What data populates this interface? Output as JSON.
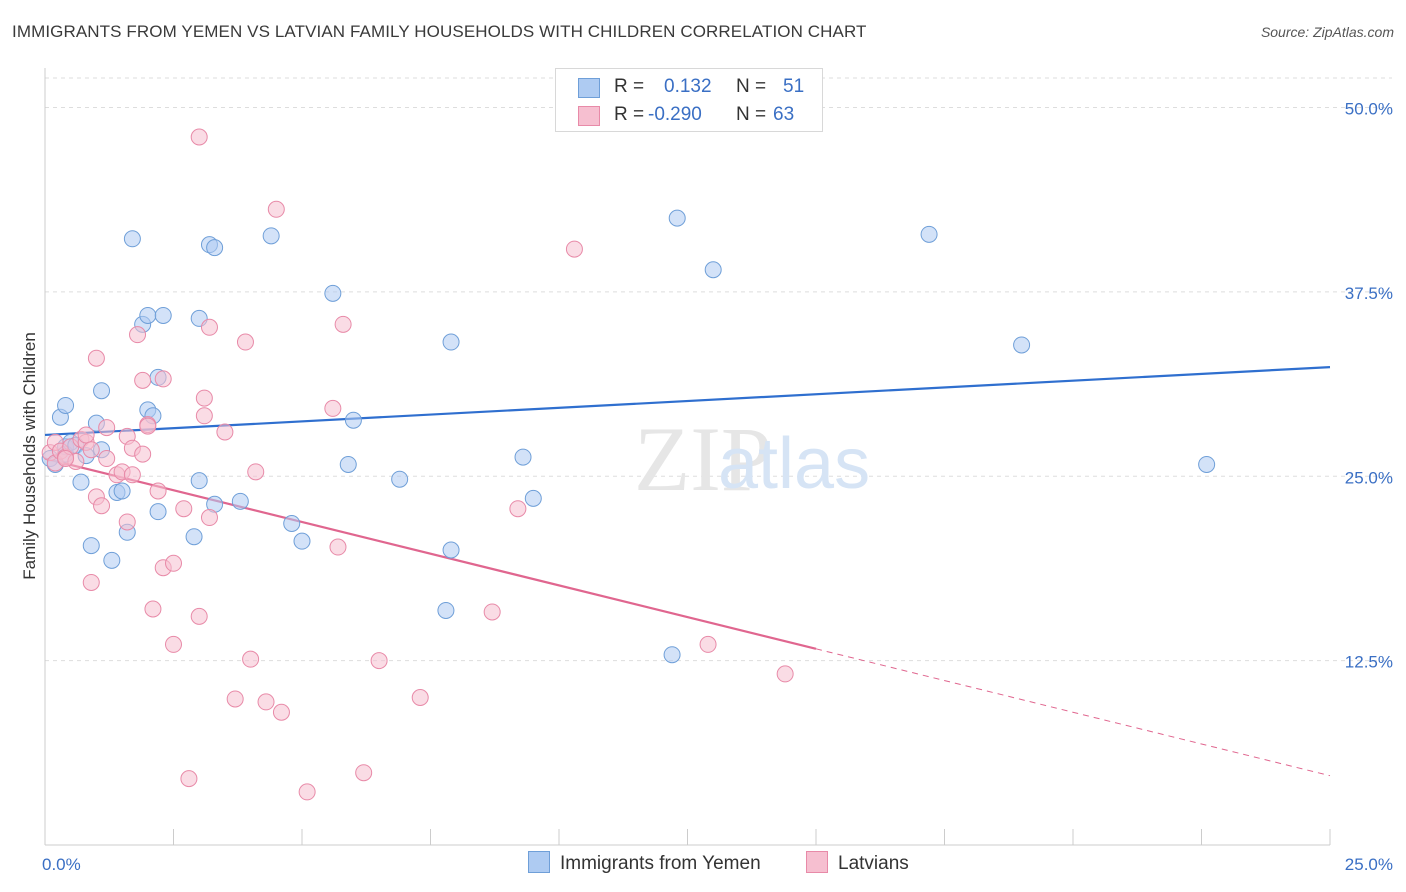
{
  "title": "IMMIGRANTS FROM YEMEN VS LATVIAN FAMILY HOUSEHOLDS WITH CHILDREN CORRELATION CHART",
  "source": "Source: ZipAtlas.com",
  "watermark": {
    "zip": "ZIP",
    "atlas": "atlas"
  },
  "stats": [
    {
      "r_label": "R =",
      "r_value": "0.132",
      "n_label": "N =",
      "n_value": "51"
    },
    {
      "r_label": "R =",
      "r_value": "-0.290",
      "n_label": "N =",
      "n_value": "63"
    }
  ],
  "legend": {
    "yemen": "Immigrants from Yemen",
    "latvians": "Latvians"
  },
  "colors": {
    "yemen_fill": "#aecbf2",
    "yemen_stroke": "#6f9fd8",
    "yemen_line": "#2f6fcf",
    "latvian_fill": "#f6bfd0",
    "latvian_stroke": "#e88aa8",
    "latvian_line": "#e0668f",
    "tick_label": "#3a6fc4",
    "grid": "#dddddd"
  },
  "chart_data": {
    "type": "scatter",
    "title": "IMMIGRANTS FROM YEMEN VS LATVIAN FAMILY HOUSEHOLDS WITH CHILDREN CORRELATION CHART",
    "xlabel": "",
    "ylabel": "Family Households with Children",
    "xlim": [
      0,
      25
    ],
    "ylim": [
      0,
      52
    ],
    "x_tick_labels": [
      "0.0%",
      "25.0%"
    ],
    "y_ticks": [
      12.5,
      25.0,
      37.5,
      50.0
    ],
    "y_tick_labels": [
      "12.5%",
      "25.0%",
      "37.5%",
      "50.0%"
    ],
    "grid": true,
    "legend_position": "bottom-center",
    "series": [
      {
        "name": "Immigrants from Yemen",
        "trend": {
          "x": [
            0,
            25
          ],
          "y": [
            27.8,
            32.4
          ]
        },
        "points": [
          [
            0.1,
            26.2
          ],
          [
            0.2,
            25.8
          ],
          [
            0.3,
            29.0
          ],
          [
            0.4,
            27.0
          ],
          [
            0.4,
            26.5
          ],
          [
            0.4,
            29.8
          ],
          [
            0.5,
            27.3
          ],
          [
            0.6,
            27.1
          ],
          [
            0.7,
            24.6
          ],
          [
            0.8,
            26.4
          ],
          [
            0.9,
            20.3
          ],
          [
            1.0,
            28.6
          ],
          [
            1.1,
            26.8
          ],
          [
            1.1,
            30.8
          ],
          [
            1.3,
            19.3
          ],
          [
            1.4,
            23.9
          ],
          [
            1.5,
            24.0
          ],
          [
            1.6,
            21.2
          ],
          [
            1.7,
            41.1
          ],
          [
            1.9,
            35.3
          ],
          [
            2.0,
            29.5
          ],
          [
            2.0,
            35.9
          ],
          [
            2.1,
            29.1
          ],
          [
            2.2,
            31.7
          ],
          [
            2.2,
            22.6
          ],
          [
            2.3,
            35.9
          ],
          [
            2.9,
            20.9
          ],
          [
            3.0,
            35.7
          ],
          [
            3.0,
            24.7
          ],
          [
            3.2,
            40.7
          ],
          [
            3.3,
            40.5
          ],
          [
            3.3,
            23.1
          ],
          [
            3.8,
            23.3
          ],
          [
            4.4,
            41.3
          ],
          [
            4.8,
            21.8
          ],
          [
            5.0,
            20.6
          ],
          [
            5.6,
            37.4
          ],
          [
            5.9,
            25.8
          ],
          [
            6.0,
            28.8
          ],
          [
            6.9,
            24.8
          ],
          [
            7.8,
            15.9
          ],
          [
            7.9,
            20.0
          ],
          [
            7.9,
            34.1
          ],
          [
            9.3,
            26.3
          ],
          [
            9.5,
            23.5
          ],
          [
            12.2,
            12.9
          ],
          [
            12.3,
            42.5
          ],
          [
            13.0,
            39.0
          ],
          [
            17.2,
            41.4
          ],
          [
            19.0,
            33.9
          ],
          [
            22.6,
            25.8
          ]
        ]
      },
      {
        "name": "Latvians",
        "trend": {
          "x": [
            0,
            15
          ],
          "y": [
            26.2,
            13.3
          ]
        },
        "trend_extension": {
          "x": [
            15,
            25
          ],
          "y": [
            13.3,
            4.7
          ]
        },
        "points": [
          [
            0.1,
            26.6
          ],
          [
            0.2,
            25.9
          ],
          [
            0.2,
            27.3
          ],
          [
            0.3,
            26.7
          ],
          [
            0.4,
            26.3
          ],
          [
            0.5,
            27.0
          ],
          [
            0.6,
            26.0
          ],
          [
            0.7,
            27.5
          ],
          [
            0.8,
            27.3
          ],
          [
            0.8,
            27.8
          ],
          [
            0.9,
            26.8
          ],
          [
            0.9,
            17.8
          ],
          [
            1.0,
            23.6
          ],
          [
            1.0,
            33.0
          ],
          [
            1.1,
            23.0
          ],
          [
            1.2,
            26.2
          ],
          [
            1.2,
            28.3
          ],
          [
            1.4,
            25.1
          ],
          [
            1.5,
            25.3
          ],
          [
            1.6,
            21.9
          ],
          [
            1.6,
            27.7
          ],
          [
            1.7,
            26.9
          ],
          [
            1.7,
            25.1
          ],
          [
            1.9,
            26.5
          ],
          [
            1.8,
            34.6
          ],
          [
            1.9,
            31.5
          ],
          [
            2.0,
            28.5
          ],
          [
            2.0,
            28.4
          ],
          [
            2.1,
            16.0
          ],
          [
            2.3,
            31.6
          ],
          [
            2.2,
            24.0
          ],
          [
            2.3,
            18.8
          ],
          [
            2.5,
            19.1
          ],
          [
            2.5,
            13.6
          ],
          [
            2.7,
            22.8
          ],
          [
            2.8,
            4.5
          ],
          [
            3.0,
            48.0
          ],
          [
            3.0,
            15.5
          ],
          [
            3.1,
            29.1
          ],
          [
            3.1,
            30.3
          ],
          [
            3.2,
            22.2
          ],
          [
            3.2,
            35.1
          ],
          [
            3.5,
            28.0
          ],
          [
            3.7,
            9.9
          ],
          [
            3.9,
            34.1
          ],
          [
            4.0,
            12.6
          ],
          [
            4.1,
            25.3
          ],
          [
            4.3,
            9.7
          ],
          [
            4.5,
            43.1
          ],
          [
            4.6,
            9.0
          ],
          [
            5.1,
            3.6
          ],
          [
            5.6,
            29.6
          ],
          [
            5.7,
            20.2
          ],
          [
            5.8,
            35.3
          ],
          [
            6.2,
            4.9
          ],
          [
            6.5,
            12.5
          ],
          [
            7.3,
            10.0
          ],
          [
            10.3,
            40.4
          ],
          [
            8.7,
            15.8
          ],
          [
            9.2,
            22.8
          ],
          [
            12.9,
            13.6
          ],
          [
            14.4,
            11.6
          ],
          [
            0.4,
            26.2
          ]
        ]
      }
    ]
  }
}
